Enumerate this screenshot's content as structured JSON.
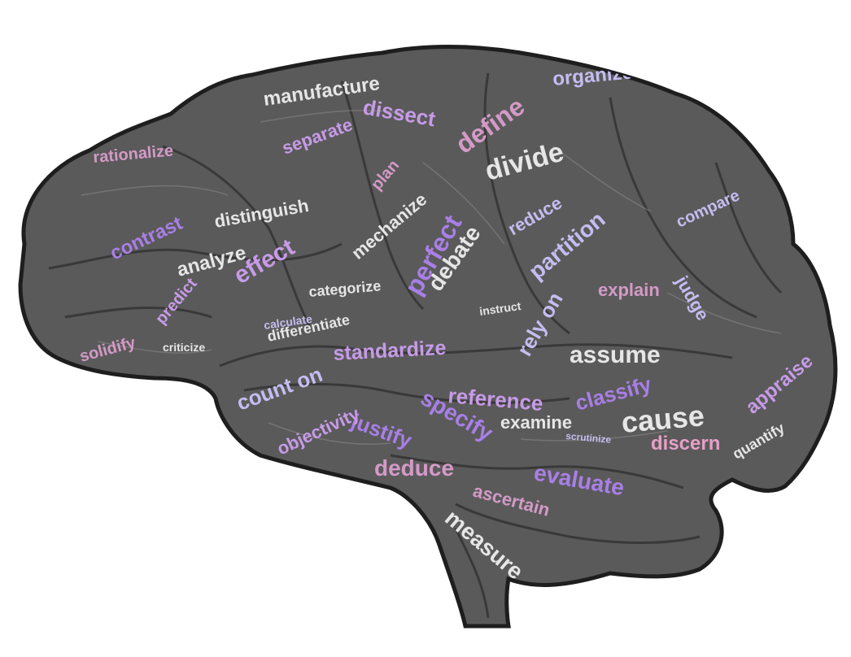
{
  "colors": {
    "background": "#ffffff",
    "brain_fill": "#5a5a5a",
    "brain_dark": "#3a3a3a",
    "outline": "#1e1e1e",
    "word_white": "#e6e6e6",
    "word_lilac": "#c79be8",
    "word_violet": "#a87fe6",
    "word_pink": "#d39ac7",
    "word_lavender": "#c4bdf0"
  },
  "words": [
    "assume",
    "standardize",
    "reference",
    "count on",
    "rely on",
    "cause",
    "divide",
    "define",
    "perfect",
    "debate",
    "effect",
    "deduce",
    "measure",
    "specify",
    "classify",
    "appraise",
    "justify",
    "objectivity",
    "evaluate",
    "ascertain",
    "discern",
    "examine",
    "partition",
    "explain",
    "organize",
    "dissect",
    "manufacture",
    "distinguish",
    "separate",
    "rationalize",
    "contrast",
    "analyze",
    "judge",
    "predict",
    "mechanize",
    "categorize",
    "differentiate",
    "calculate",
    "criticize",
    "solidify",
    "compare",
    "reduce",
    "plan",
    "quantify",
    "instruct",
    "scrutinize"
  ]
}
